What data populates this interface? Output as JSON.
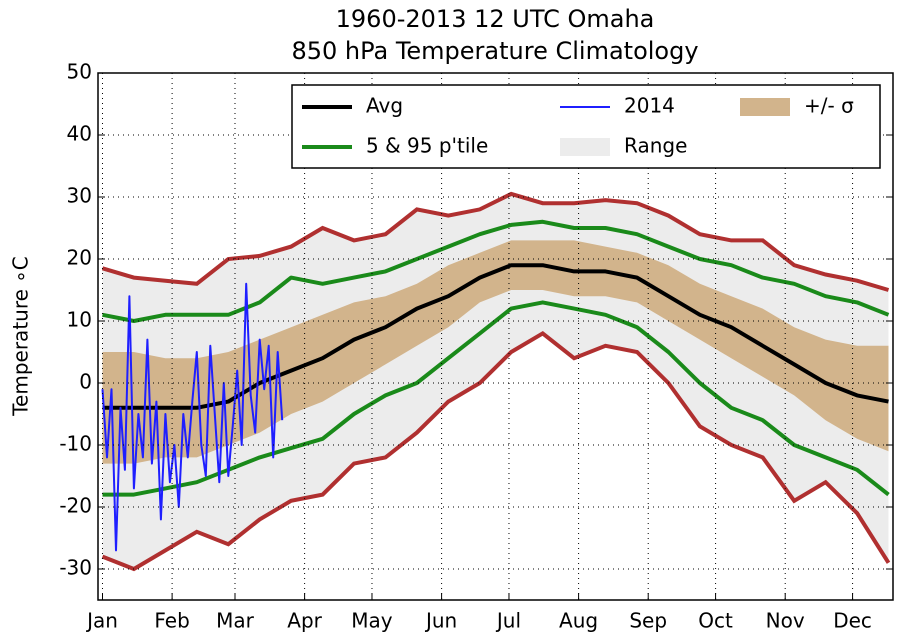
{
  "chart_data": {
    "type": "line",
    "title": "1960-2013 12 UTC Omaha",
    "subtitle": "850 hPa Temperature Climatology",
    "y_label": "Temperature ∘C",
    "xlim": [
      -1,
      353
    ],
    "ylim": [
      -35,
      50
    ],
    "xticks": [
      {
        "value": 1,
        "label": "Jan"
      },
      {
        "value": 32,
        "label": "Feb"
      },
      {
        "value": 60,
        "label": "Mar"
      },
      {
        "value": 91,
        "label": "Apr"
      },
      {
        "value": 121,
        "label": "May"
      },
      {
        "value": 152,
        "label": "Jun"
      },
      {
        "value": 182,
        "label": "Jul"
      },
      {
        "value": 213,
        "label": "Aug"
      },
      {
        "value": 244,
        "label": "Sep"
      },
      {
        "value": 274,
        "label": "Oct"
      },
      {
        "value": 305,
        "label": "Nov"
      },
      {
        "value": 335,
        "label": "Dec"
      }
    ],
    "yticks": [
      -30,
      -20,
      -10,
      0,
      10,
      20,
      30,
      40,
      50
    ],
    "grid": true,
    "legend": "upper right",
    "series": [
      {
        "name": "Avg",
        "type": "line",
        "color": "#000000",
        "x": [
          1,
          15,
          29,
          43,
          57,
          71,
          85,
          99,
          113,
          127,
          141,
          155,
          169,
          183,
          197,
          211,
          225,
          239,
          253,
          267,
          281,
          295,
          309,
          323,
          337,
          351
        ],
        "values": [
          -4,
          -4,
          -4,
          -4,
          -3,
          0,
          2,
          4,
          7,
          9,
          12,
          14,
          17,
          19,
          19,
          18,
          18,
          17,
          14,
          11,
          9,
          6,
          3,
          0,
          -2,
          -3
        ]
      },
      {
        "name": "2014",
        "type": "line",
        "color": "#1f1fff",
        "x": [
          1,
          3,
          5,
          7,
          9,
          11,
          13,
          15,
          17,
          19,
          21,
          23,
          25,
          27,
          29,
          31,
          33,
          35,
          37,
          39,
          41,
          43,
          45,
          47,
          49,
          51,
          53,
          55,
          57,
          59,
          61,
          63,
          65,
          67,
          69,
          71,
          73,
          75,
          77,
          79,
          81
        ],
        "values": [
          -1,
          -12,
          -1,
          -27,
          -4,
          -14,
          14,
          -17,
          -5,
          -12,
          7,
          -13,
          -3,
          -22,
          -5,
          -16,
          -10,
          -20,
          -5,
          -12,
          -3,
          5,
          -10,
          -15,
          6,
          -5,
          -16,
          0,
          -15,
          -7,
          2,
          -10,
          16,
          -2,
          -8,
          7,
          -1,
          6,
          -12,
          5,
          -6
        ]
      },
      {
        "name": "+/- σ",
        "type": "band",
        "color": "#d2b48c",
        "x": [
          1,
          15,
          29,
          43,
          57,
          71,
          85,
          99,
          113,
          127,
          141,
          155,
          169,
          183,
          197,
          211,
          225,
          239,
          253,
          267,
          281,
          295,
          309,
          323,
          337,
          351
        ],
        "upper": [
          5,
          5,
          4,
          4,
          5,
          7,
          9,
          11,
          13,
          14,
          16,
          19,
          21,
          23,
          23,
          23,
          22,
          21,
          19,
          16,
          14,
          12,
          9,
          7,
          6,
          6
        ],
        "lower": [
          -13,
          -13,
          -12,
          -12,
          -10,
          -8,
          -5,
          -3,
          0,
          3,
          6,
          9,
          13,
          15,
          15,
          14,
          14,
          13,
          10,
          7,
          4,
          1,
          -2,
          -6,
          -9,
          -11
        ]
      },
      {
        "name": "5 & 95 p'tile",
        "type": "lines",
        "color": "#1a8a1a",
        "x": [
          1,
          15,
          29,
          43,
          57,
          71,
          85,
          99,
          113,
          127,
          141,
          155,
          169,
          183,
          197,
          211,
          225,
          239,
          253,
          267,
          281,
          295,
          309,
          323,
          337,
          351
        ],
        "upper": [
          11,
          10,
          11,
          11,
          11,
          13,
          17,
          16,
          17,
          18,
          20,
          22,
          24,
          25.5,
          26,
          25,
          25,
          24,
          22,
          20,
          19,
          17,
          16,
          14,
          13,
          11
        ],
        "lower": [
          -18,
          -18,
          -17,
          -16,
          -14,
          -12,
          -10.5,
          -9,
          -5,
          -2,
          0,
          4,
          8,
          12,
          13,
          12,
          11,
          9,
          5,
          0,
          -4,
          -6,
          -10,
          -12,
          -14,
          -18
        ]
      },
      {
        "name": "Range",
        "type": "band",
        "color": "#ececec",
        "line_color": "#b03030",
        "x": [
          1,
          15,
          29,
          43,
          57,
          71,
          85,
          99,
          113,
          127,
          141,
          155,
          169,
          183,
          197,
          211,
          225,
          239,
          253,
          267,
          281,
          295,
          309,
          323,
          337,
          351
        ],
        "upper": [
          18.5,
          17,
          16.5,
          16,
          20,
          20.5,
          22,
          25,
          23,
          24,
          28,
          27,
          28,
          30.5,
          29,
          29,
          29.5,
          29,
          27,
          24,
          23,
          23,
          19,
          17.5,
          16.5,
          15
        ],
        "lower": [
          -28,
          -30,
          -27,
          -24,
          -26,
          -22,
          -19,
          -18,
          -13,
          -12,
          -8,
          -3,
          0,
          5,
          8,
          4,
          6,
          5,
          0,
          -7,
          -10,
          -12,
          -19,
          -16,
          -21,
          -29
        ]
      }
    ]
  }
}
